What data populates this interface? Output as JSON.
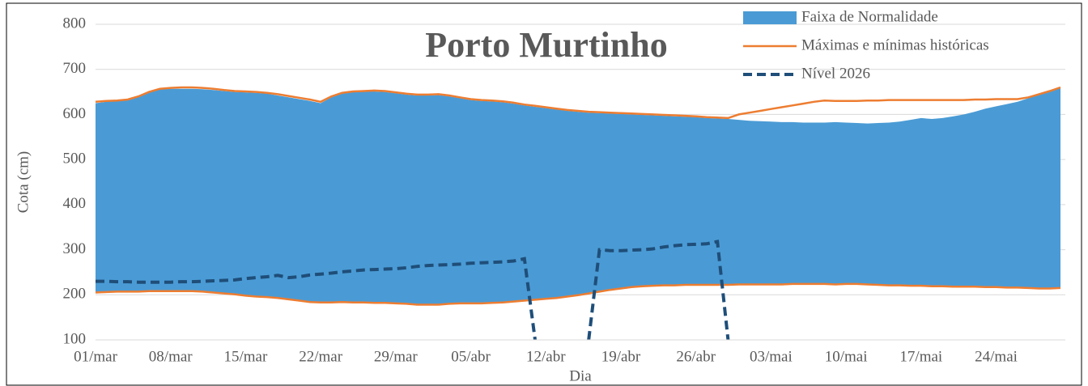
{
  "chart_data": {
    "type": "band-line",
    "title": "Porto Murtinho",
    "xlabel": "Dia",
    "ylabel": "Cota (cm)",
    "categories": [
      "01/mar",
      null,
      null,
      null,
      null,
      null,
      null,
      "08/mar",
      null,
      null,
      null,
      null,
      null,
      null,
      "15/mar",
      null,
      null,
      null,
      null,
      null,
      null,
      "22/mar",
      null,
      null,
      null,
      null,
      null,
      null,
      "29/mar",
      null,
      null,
      null,
      null,
      null,
      null,
      "05/abr",
      null,
      null,
      null,
      null,
      null,
      null,
      "12/abr",
      null,
      null,
      null,
      null,
      null,
      null,
      "19/abr",
      null,
      null,
      null,
      null,
      null,
      null,
      "26/abr",
      null,
      null,
      null,
      null,
      null,
      null,
      "03/mai",
      null,
      null,
      null,
      null,
      null,
      null,
      "10/mai",
      null,
      null,
      null,
      null,
      null,
      null,
      "17/mai",
      null,
      null,
      null,
      null,
      null,
      null,
      "24/mai",
      null,
      null,
      null,
      null,
      null,
      null
    ],
    "series": [
      {
        "name": "Faixa de Normalidade",
        "color": "#4a9bd5",
        "kind": "band",
        "values": [
          625,
          628,
          630,
          632,
          640,
          650,
          656,
          657,
          657,
          657,
          656,
          654,
          652,
          650,
          649,
          648,
          646,
          642,
          638,
          634,
          630,
          625,
          638,
          646,
          650,
          651,
          651,
          650,
          647,
          644,
          642,
          642,
          643,
          640,
          636,
          632,
          630,
          629,
          627,
          624,
          620,
          617,
          614,
          611,
          608,
          606,
          604,
          603,
          602,
          601,
          600,
          599,
          598,
          597,
          596,
          595,
          594,
          592,
          591,
          590,
          588,
          586,
          585,
          584,
          583,
          583,
          582,
          582,
          582,
          583,
          582,
          581,
          580,
          581,
          582,
          584,
          588,
          592,
          590,
          592,
          596,
          600,
          606,
          613,
          618,
          623,
          628,
          636,
          644,
          652,
          658
        ],
        "lows": [
          205,
          206,
          207,
          207,
          207,
          208,
          208,
          208,
          208,
          208,
          207,
          205,
          203,
          201,
          198,
          196,
          195,
          193,
          190,
          187,
          184,
          183,
          183,
          184,
          183,
          183,
          182,
          182,
          181,
          180,
          178,
          178,
          178,
          180,
          181,
          181,
          181,
          182,
          183,
          185,
          187,
          189,
          191,
          193,
          196,
          199,
          203,
          207,
          211,
          214,
          217,
          219,
          220,
          221,
          221,
          222,
          222,
          222,
          222,
          222,
          223,
          223,
          223,
          223,
          223,
          224,
          224,
          224,
          224,
          223,
          224,
          224,
          223,
          222,
          221,
          221,
          220,
          220,
          219,
          219,
          218,
          218,
          218,
          217,
          217,
          216,
          216,
          215,
          214,
          214,
          215
        ]
      },
      {
        "name": "Máximas e mínimas históricas",
        "color": "#ed7d31",
        "kind": "line",
        "values": [
          628,
          630,
          631,
          633,
          640,
          650,
          657,
          659,
          660,
          660,
          659,
          657,
          654,
          652,
          651,
          650,
          648,
          645,
          641,
          637,
          633,
          628,
          640,
          648,
          651,
          652,
          653,
          652,
          649,
          646,
          644,
          644,
          645,
          642,
          638,
          634,
          632,
          631,
          629,
          626,
          622,
          619,
          616,
          613,
          610,
          608,
          606,
          605,
          604,
          603,
          602,
          601,
          600,
          599,
          598,
          597,
          596,
          594,
          593,
          592,
          600,
          604,
          608,
          612,
          616,
          620,
          624,
          628,
          631,
          630,
          630,
          630,
          631,
          631,
          632,
          632,
          632,
          632,
          632,
          632,
          632,
          632,
          633,
          633,
          634,
          634,
          634,
          638,
          645,
          652,
          660
        ],
        "lows": [
          205,
          206,
          207,
          207,
          207,
          208,
          208,
          208,
          208,
          208,
          207,
          205,
          203,
          201,
          198,
          196,
          195,
          193,
          190,
          187,
          184,
          183,
          183,
          184,
          183,
          183,
          182,
          182,
          181,
          180,
          178,
          178,
          178,
          180,
          181,
          181,
          181,
          182,
          183,
          185,
          187,
          189,
          191,
          193,
          196,
          199,
          203,
          207,
          211,
          214,
          217,
          219,
          220,
          221,
          221,
          222,
          222,
          222,
          222,
          222,
          223,
          223,
          223,
          223,
          223,
          224,
          224,
          224,
          224,
          223,
          224,
          224,
          223,
          222,
          221,
          221,
          220,
          220,
          219,
          219,
          218,
          218,
          218,
          217,
          217,
          216,
          216,
          215,
          214,
          214,
          215
        ]
      },
      {
        "name": "Nível 2026",
        "color": "#1f4e79",
        "kind": "dashed",
        "values": [
          230,
          230,
          229,
          229,
          228,
          228,
          228,
          228,
          229,
          229,
          230,
          231,
          232,
          233,
          236,
          238,
          240,
          243,
          238,
          240,
          244,
          246,
          248,
          251,
          253,
          255,
          256,
          257,
          258,
          260,
          263,
          265,
          266,
          267,
          268,
          270,
          271,
          272,
          273,
          275,
          280,
          100,
          null,
          null,
          null,
          null,
          100,
          300,
          298,
          298,
          299,
          300,
          302,
          306,
          309,
          311,
          312,
          313,
          318,
          100,
          null,
          null,
          null,
          null,
          null,
          null,
          null,
          null,
          null,
          null,
          null,
          null,
          null,
          null,
          null,
          null,
          null,
          null,
          null,
          null,
          null,
          null,
          null,
          null,
          null,
          null,
          null,
          null,
          null,
          null,
          null
        ]
      }
    ],
    "ylim": [
      100,
      800
    ],
    "yticks": [
      100,
      200,
      300,
      400,
      500,
      600,
      700,
      800
    ],
    "grid": true,
    "legend": "upper right"
  }
}
